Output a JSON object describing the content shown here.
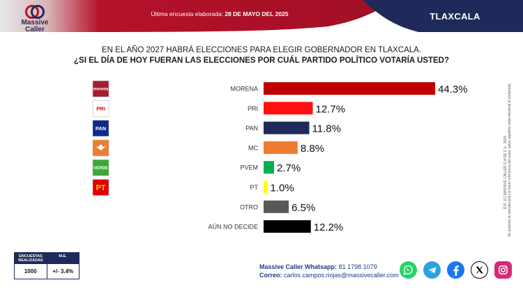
{
  "header": {
    "last_poll_label": "Última encuesta elaborada:",
    "last_poll_date": "28 DE MAYO DEL 2025",
    "region": "TLAXCALA"
  },
  "brand": {
    "name_line1": "Massive",
    "name_line2": "Caller",
    "accent_red": "#b5122a",
    "accent_navy": "#1f2a5a"
  },
  "question": {
    "line1": "EN EL AÑO 2027 HABRÁ ELECCIONES PARA ELEGIR GOBERNADOR EN TLAXCALA.",
    "line2": "¿SI EL DÍA DE HOY FUERAN LAS ELECCIONES POR CUÁL PARTIDO POLÍTICO VOTARÍA USTED?"
  },
  "chart_data": {
    "type": "bar",
    "orientation": "horizontal",
    "categories": [
      "MORENA",
      "PRI",
      "PAN",
      "MC",
      "PVEM",
      "PT",
      "OTRO",
      "AÚN NO DECIDE"
    ],
    "values": [
      44.3,
      12.7,
      11.8,
      8.8,
      2.7,
      1.0,
      6.5,
      12.2
    ],
    "value_labels": [
      "44.3%",
      "12.7%",
      "11.8%",
      "8.8%",
      "2.7%",
      "1.0%",
      "6.5%",
      "12.2%"
    ],
    "colors": [
      "#c00000",
      "#ff1010",
      "#1f2a5a",
      "#ee7d31",
      "#00b050",
      "#ffff00",
      "#595959",
      "#000000"
    ],
    "xlim": [
      0,
      48
    ],
    "grid": false,
    "logos": [
      {
        "type": "text",
        "text": "morena",
        "bg": "#a51c30",
        "fg": "#ffffff"
      },
      {
        "type": "text",
        "text": "PRI",
        "bg": "#ffffff",
        "fg": "#d50000"
      },
      {
        "type": "text",
        "text": "PAN",
        "bg": "#0e2b8c",
        "fg": "#ffffff"
      },
      {
        "type": "icon",
        "icon": "mc-eagle-icon",
        "bg": "#ee7d31",
        "fg": "#ffffff"
      },
      {
        "type": "text",
        "text": "VERDE",
        "bg": "#3aa835",
        "fg": "#ffffff"
      },
      {
        "type": "text",
        "text": "PT",
        "bg": "#e00000",
        "fg": "#ffd600"
      },
      {
        "type": "none"
      },
      {
        "type": "none"
      }
    ]
  },
  "side_notes": {
    "copyright": "D.R. (C) MASSIVE CALLER S.A DE C.V., 2024",
    "reproduction": "Se autoriza la reproducción al hacer referencia del autor, salvo aquellos veda electoral al contenido."
  },
  "stats": {
    "col1_header": "ENCUESTAS REALIZADAS",
    "col2_header": "M.E.",
    "col1_value": "1000",
    "col2_value": "+/- 3.4%"
  },
  "contact": {
    "whatsapp_label": "Massive Caller Whatsapp:",
    "whatsapp_number": "81 1798 1079",
    "email_label": "Correo:",
    "email_value": "carlos.campos.riojas@massivecaller.com"
  },
  "socials": [
    {
      "icon": "whatsapp-icon",
      "color": "#25d366"
    },
    {
      "icon": "telegram-icon",
      "color": "#2aa3df"
    },
    {
      "icon": "facebook-icon",
      "color": "#1877f2"
    },
    {
      "icon": "x-icon",
      "color": "#000000"
    },
    {
      "icon": "instagram-icon",
      "color": "#d62976"
    }
  ]
}
